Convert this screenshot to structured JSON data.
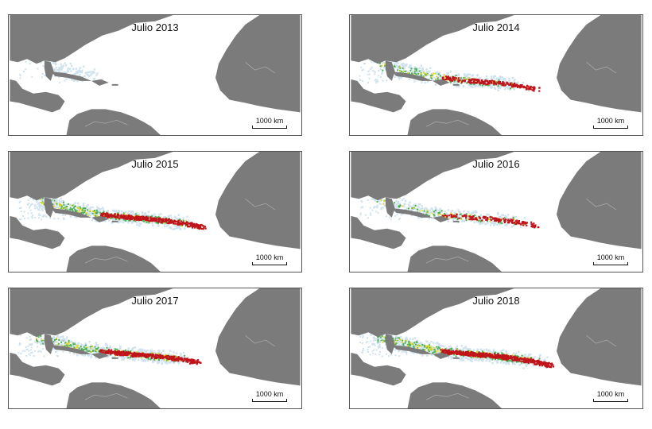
{
  "panels": [
    {
      "title": "Julio 2013",
      "scale_label": "1000 km",
      "density": {
        "blue": 0.25,
        "green": 0.0,
        "yellow": 0.0,
        "red": 0.0,
        "extent": 0.15
      }
    },
    {
      "title": "Julio 2014",
      "scale_label": "1000 km",
      "density": {
        "blue": 0.7,
        "green": 0.35,
        "yellow": 0.25,
        "red": 0.45,
        "extent": 0.7
      }
    },
    {
      "title": "Julio 2015",
      "scale_label": "1000 km",
      "density": {
        "blue": 0.9,
        "green": 0.65,
        "yellow": 0.45,
        "red": 0.75,
        "extent": 0.75
      }
    },
    {
      "title": "Julio 2016",
      "scale_label": "1000 km",
      "density": {
        "blue": 0.55,
        "green": 0.25,
        "yellow": 0.2,
        "red": 0.3,
        "extent": 0.7
      }
    },
    {
      "title": "Julio 2017",
      "scale_label": "1000 km",
      "density": {
        "blue": 0.85,
        "green": 0.55,
        "yellow": 0.4,
        "red": 0.7,
        "extent": 0.7
      }
    },
    {
      "title": "Julio 2018",
      "scale_label": "1000 km",
      "density": {
        "blue": 1.0,
        "green": 0.75,
        "yellow": 0.6,
        "red": 1.0,
        "extent": 0.8
      }
    }
  ],
  "colors": {
    "land": "#7b7b7b",
    "ocean": "#ffffff",
    "density_low": "#cfe2ef",
    "density_mid": "#4caf50",
    "density_high": "#e8d81c",
    "density_max": "#c0141a"
  }
}
